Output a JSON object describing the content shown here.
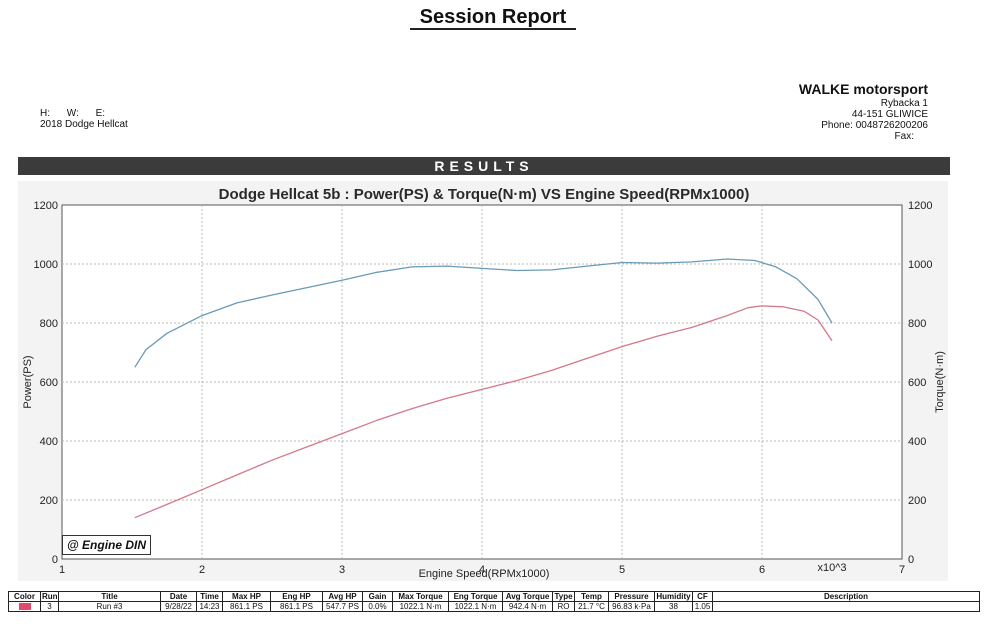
{
  "report": {
    "title": "Session Report"
  },
  "vehicle": {
    "h_label": "H:",
    "w_label": "W:",
    "e_label": "E:",
    "description": "2018 Dodge  Hellcat"
  },
  "shop": {
    "name": "WALKE motorsport",
    "street": "Rybacka 1",
    "city": "44-151 GLIWICE",
    "phone": "Phone: 0048726200206",
    "fax": "Fax:"
  },
  "results_label": "RESULTS",
  "stamp": "@ Engine DIN",
  "chart_data": {
    "type": "line",
    "title": "Dodge Hellcat 5b : Power(PS) & Torque(N·m) VS Engine Speed(RPMx1000)",
    "xlabel": "Engine Speed(RPMx1000)",
    "x_multiplier_label": "x10^3",
    "ylabel_left": "Power(PS)",
    "ylabel_right": "Torque(N·m)",
    "xlim": [
      1,
      7
    ],
    "ylim_left": [
      0,
      1200
    ],
    "ylim_right": [
      0,
      1200
    ],
    "x_ticks": [
      1,
      2,
      3,
      4,
      5,
      6,
      7
    ],
    "y_ticks": [
      0,
      200,
      400,
      600,
      800,
      1000,
      1200
    ],
    "grid": true,
    "series": [
      {
        "name": "Torque",
        "axis": "right",
        "color": "#6a9ab8",
        "points": [
          [
            1.52,
            650
          ],
          [
            1.6,
            710
          ],
          [
            1.75,
            765
          ],
          [
            2.0,
            825
          ],
          [
            2.25,
            868
          ],
          [
            2.5,
            895
          ],
          [
            2.75,
            920
          ],
          [
            3.0,
            945
          ],
          [
            3.25,
            972
          ],
          [
            3.5,
            990
          ],
          [
            3.75,
            993
          ],
          [
            4.0,
            985
          ],
          [
            4.25,
            978
          ],
          [
            4.5,
            980
          ],
          [
            4.75,
            993
          ],
          [
            5.0,
            1005
          ],
          [
            5.25,
            1003
          ],
          [
            5.5,
            1007
          ],
          [
            5.75,
            1017
          ],
          [
            5.95,
            1012
          ],
          [
            6.1,
            990
          ],
          [
            6.25,
            950
          ],
          [
            6.4,
            880
          ],
          [
            6.5,
            800
          ]
        ]
      },
      {
        "name": "Power",
        "axis": "left",
        "color": "#d4788a",
        "points": [
          [
            1.52,
            140
          ],
          [
            1.75,
            185
          ],
          [
            2.0,
            235
          ],
          [
            2.25,
            285
          ],
          [
            2.5,
            335
          ],
          [
            2.75,
            380
          ],
          [
            3.0,
            425
          ],
          [
            3.25,
            470
          ],
          [
            3.5,
            510
          ],
          [
            3.75,
            545
          ],
          [
            4.0,
            575
          ],
          [
            4.25,
            605
          ],
          [
            4.5,
            640
          ],
          [
            4.75,
            680
          ],
          [
            5.0,
            720
          ],
          [
            5.25,
            755
          ],
          [
            5.5,
            785
          ],
          [
            5.75,
            825
          ],
          [
            5.9,
            852
          ],
          [
            6.0,
            858
          ],
          [
            6.15,
            855
          ],
          [
            6.3,
            840
          ],
          [
            6.4,
            810
          ],
          [
            6.5,
            740
          ]
        ]
      }
    ]
  },
  "session_table": {
    "headers": [
      "Color",
      "Run",
      "Title",
      "Date",
      "Time",
      "Max HP",
      "Eng HP",
      "Avg HP",
      "Gain",
      "Max Torque",
      "Eng Torque",
      "Avg Torque",
      "Type",
      "Temp",
      "Pressure",
      "Humidity",
      "CF",
      "Description"
    ],
    "row": {
      "color": "#e24a6a",
      "run": "3",
      "title": "Run #3",
      "date": "9/28/22",
      "time": "14:23",
      "max_hp": "861.1 PS",
      "eng_hp": "861.1 PS",
      "avg_hp": "547.7 PS",
      "gain": "0.0%",
      "max_torque": "1022.1 N·m",
      "eng_torque": "1022.1 N·m",
      "avg_torque": "942.4 N·m",
      "type": "RO",
      "temp": "21.7 °C",
      "pressure": "96.83 k·Pa",
      "humidity": "38",
      "cf": "1.05",
      "description": ""
    }
  }
}
